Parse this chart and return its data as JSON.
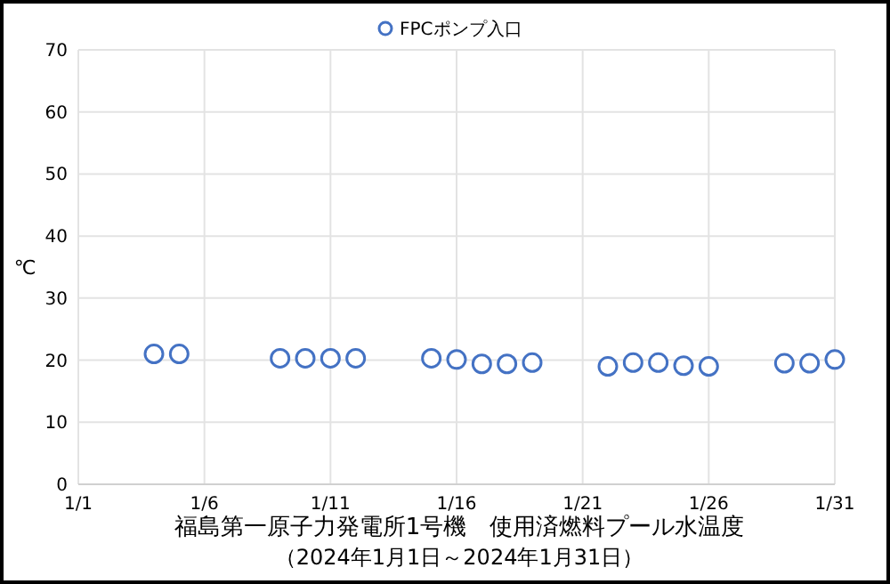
{
  "chart_data": {
    "type": "scatter",
    "title": "福島第一原子力発電所1号機　使用済燃料プール水温度",
    "subtitle": "（2024年1月1日～2024年1月31日）",
    "ylabel": "℃",
    "x": [
      "2024-01-04",
      "2024-01-05",
      "2024-01-09",
      "2024-01-10",
      "2024-01-11",
      "2024-01-12",
      "2024-01-15",
      "2024-01-16",
      "2024-01-17",
      "2024-01-18",
      "2024-01-19",
      "2024-01-22",
      "2024-01-23",
      "2024-01-24",
      "2024-01-25",
      "2024-01-26",
      "2024-01-29",
      "2024-01-30",
      "2024-01-31"
    ],
    "series": [
      {
        "name": "FPCポンプ入口",
        "color": "#4472c4",
        "values": [
          21.0,
          21.0,
          20.3,
          20.3,
          20.3,
          20.3,
          20.3,
          20.1,
          19.4,
          19.4,
          19.6,
          19.0,
          19.6,
          19.6,
          19.1,
          19.0,
          19.5,
          19.5,
          20.1
        ]
      }
    ],
    "xlim": [
      "2024-01-01",
      "2024-01-31"
    ],
    "xticks": [
      {
        "value": "2024-01-01",
        "label": "1/1"
      },
      {
        "value": "2024-01-06",
        "label": "1/6"
      },
      {
        "value": "2024-01-11",
        "label": "1/11"
      },
      {
        "value": "2024-01-16",
        "label": "1/16"
      },
      {
        "value": "2024-01-21",
        "label": "1/21"
      },
      {
        "value": "2024-01-26",
        "label": "1/26"
      },
      {
        "value": "2024-01-31",
        "label": "1/31"
      }
    ],
    "ylim": [
      0,
      70
    ],
    "yticks": [
      0,
      10,
      20,
      30,
      40,
      50,
      60,
      70
    ],
    "grid": true,
    "legend": "top",
    "marker": "circle"
  }
}
